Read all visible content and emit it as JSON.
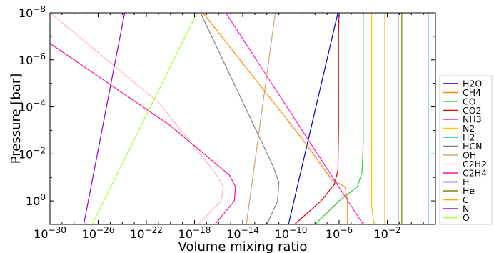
{
  "chart_data": {
    "type": "line",
    "xlabel": "Volume mixing ratio",
    "ylabel": "Pressure [bar]",
    "xscale": "log",
    "yscale": "log",
    "xlim_exp": [
      -30,
      2
    ],
    "ylim_exp": [
      1,
      -8
    ],
    "y_inverted": true,
    "x_tick_exps": [
      -30,
      -26,
      -22,
      -18,
      -14,
      -10,
      -6,
      -2
    ],
    "y_tick_exps": [
      0,
      -2,
      -4,
      -6,
      -8
    ],
    "grid": false,
    "legend_position": "right",
    "series": [
      {
        "name": "H2O",
        "color": "#0000cd",
        "profile": [
          [
            -10.2,
            1
          ],
          [
            -6.1,
            -8
          ]
        ]
      },
      {
        "name": "CH4",
        "color": "#ff8c00",
        "profile": [
          [
            -17.3,
            -8
          ],
          [
            -9,
            -2.6
          ],
          [
            -6.6,
            -0.9
          ],
          [
            -5.5,
            -0.6
          ],
          [
            -5.3,
            0
          ],
          [
            -5.3,
            1
          ]
        ]
      },
      {
        "name": "CO",
        "color": "#32cd32",
        "profile": [
          [
            -8,
            1
          ],
          [
            -6,
            0
          ],
          [
            -4.5,
            -0.6
          ],
          [
            -4.1,
            -1.2
          ],
          [
            -4,
            -2.5
          ],
          [
            -4,
            -8
          ]
        ]
      },
      {
        "name": "CO2",
        "color": "#e00000",
        "profile": [
          [
            -9.7,
            1
          ],
          [
            -7.5,
            0
          ],
          [
            -6.4,
            -0.7
          ],
          [
            -6.1,
            -1.3
          ],
          [
            -6.05,
            -3
          ],
          [
            -6.05,
            -7.2
          ],
          [
            -6,
            -8
          ]
        ]
      },
      {
        "name": "NH3",
        "color": "#ff1fd0",
        "profile": [
          [
            -15.4,
            -8
          ],
          [
            -4,
            1
          ]
        ]
      },
      {
        "name": "N2",
        "color": "#ffc000",
        "profile": [
          [
            -3.1,
            1
          ],
          [
            -3.3,
            0.2
          ],
          [
            -3.3,
            -8
          ]
        ]
      },
      {
        "name": "H2",
        "color": "#00bfff",
        "profile": [
          [
            1.4,
            1
          ],
          [
            1.4,
            -8
          ]
        ]
      },
      {
        "name": "HCN",
        "color": "#808080",
        "profile": [
          [
            -12,
            1
          ],
          [
            -11.1,
            0
          ],
          [
            -11,
            -0.8
          ],
          [
            -11.5,
            -1.5
          ],
          [
            -17.5,
            -8
          ]
        ]
      },
      {
        "name": "OH",
        "color": "#c8a878",
        "profile": [
          [
            -13.7,
            1
          ],
          [
            -11.3,
            -8
          ]
        ]
      },
      {
        "name": "C2H2",
        "color": "#ffb6c1",
        "profile": [
          [
            -30,
            -8
          ],
          [
            -21,
            -4.2
          ],
          [
            -16.3,
            -1.2
          ],
          [
            -15.6,
            -0.6
          ],
          [
            -15.8,
            0
          ],
          [
            -17.7,
            1
          ]
        ]
      },
      {
        "name": "C2H4",
        "color": "#ff1493",
        "profile": [
          [
            -30,
            -6.7
          ],
          [
            -20,
            -3.2
          ],
          [
            -15.1,
            -1.1
          ],
          [
            -14.6,
            -0.6
          ],
          [
            -14.7,
            0
          ],
          [
            -16.3,
            1
          ]
        ]
      },
      {
        "name": "H",
        "color": "#1010ff",
        "profile": [
          [
            -1.1,
            1
          ],
          [
            -1.1,
            -8
          ]
        ]
      },
      {
        "name": "He",
        "color": "#808000",
        "profile": [
          [
            -0.8,
            1
          ],
          [
            -0.8,
            -8
          ]
        ]
      },
      {
        "name": "C",
        "color": "#ffa500",
        "profile": [
          [
            -2.2,
            1
          ],
          [
            -2.2,
            -8
          ]
        ]
      },
      {
        "name": "N",
        "color": "#9400d3",
        "profile": [
          [
            -27.2,
            1
          ],
          [
            -23.8,
            -8
          ]
        ]
      },
      {
        "name": "O",
        "color": "#adff2f",
        "profile": [
          [
            -26.5,
            1
          ],
          [
            -17.8,
            -8
          ]
        ]
      }
    ]
  }
}
